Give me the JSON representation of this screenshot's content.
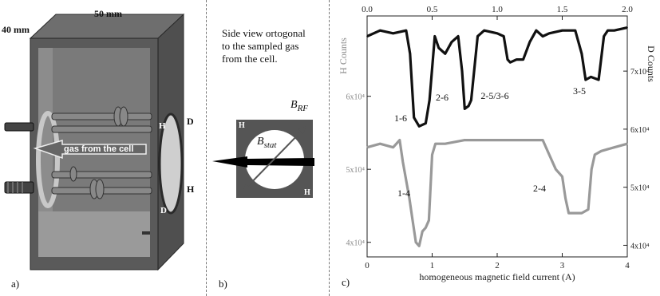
{
  "panel_a": {
    "label": "a)",
    "dim_height": "40 mm",
    "dim_width": "50 mm",
    "gas_label": "gas from the cell",
    "marks": [
      "H",
      "D",
      "H",
      "D"
    ]
  },
  "panel_b": {
    "label": "b)",
    "caption_line1": "Side view ortogonal",
    "caption_line2": "to the sampled gas",
    "caption_line3": "from the cell.",
    "b_rf": "B",
    "b_rf_sub": "RF",
    "b_stat": "B",
    "b_stat_sub": "stat",
    "corner_top": "H",
    "corner_bottom": "H"
  },
  "panel_c": {
    "label": "c)",
    "chart_data": {
      "type": "line",
      "xlabel": "homogeneous magnetic field current (A)",
      "top_axis_ticks": [
        "0.0",
        "0.5",
        "1.0",
        "1.5",
        "2.0"
      ],
      "bottom_axis_ticks": [
        "0",
        "1",
        "2",
        "3",
        "4"
      ],
      "left_axis_label": "H Counts",
      "left_ticks": [
        "6x10⁴",
        "5x10⁴",
        "4x10⁴"
      ],
      "right_axis_label": "D Counts",
      "right_ticks": [
        "7x10⁴",
        "6x10⁴",
        "5x10⁴",
        "4x10⁴"
      ],
      "xlim_bottom": [
        0,
        4
      ],
      "xlim_top": [
        0,
        2
      ],
      "series": [
        {
          "color": "#111111",
          "axis": "right-top",
          "x": [
            0,
            0.1,
            0.2,
            0.3,
            0.33,
            0.36,
            0.4,
            0.45,
            0.48,
            0.52,
            0.55,
            0.6,
            0.65,
            0.7,
            0.73,
            0.75,
            0.78,
            0.8,
            0.85,
            0.9,
            1.0,
            1.05,
            1.08,
            1.1,
            1.15,
            1.2,
            1.25,
            1.3,
            1.35,
            1.4,
            1.5,
            1.6,
            1.65,
            1.68,
            1.72,
            1.78,
            1.82,
            1.85,
            1.9,
            2.0
          ],
          "values": [
            7.6,
            7.7,
            7.65,
            7.7,
            7.3,
            6.2,
            6.05,
            6.1,
            6.5,
            7.6,
            7.4,
            7.3,
            7.5,
            7.6,
            7.0,
            6.35,
            6.4,
            6.5,
            7.6,
            7.7,
            7.65,
            7.6,
            7.2,
            7.15,
            7.2,
            7.2,
            7.5,
            7.7,
            7.6,
            7.65,
            7.7,
            7.7,
            7.3,
            6.85,
            6.9,
            6.85,
            7.6,
            7.7,
            7.7,
            7.75
          ]
        },
        {
          "color": "#999999",
          "axis": "left-bottom",
          "x": [
            0,
            0.2,
            0.4,
            0.5,
            0.55,
            0.65,
            0.7,
            0.75,
            0.8,
            0.85,
            0.9,
            0.95,
            1.0,
            1.05,
            1.2,
            1.5,
            2.0,
            2.5,
            2.7,
            2.8,
            2.9,
            3.0,
            3.05,
            3.1,
            3.2,
            3.3,
            3.4,
            3.45,
            3.5,
            3.6,
            3.8,
            4.0
          ],
          "values": [
            5.3,
            5.35,
            5.3,
            5.4,
            5.1,
            4.6,
            4.3,
            4.0,
            3.95,
            4.15,
            4.2,
            4.3,
            5.2,
            5.35,
            5.35,
            5.4,
            5.4,
            5.4,
            5.4,
            5.2,
            5.0,
            4.9,
            4.6,
            4.4,
            4.4,
            4.4,
            4.45,
            5.0,
            5.2,
            5.25,
            5.3,
            5.35
          ]
        }
      ],
      "annotations": [
        "1-6",
        "2-6",
        "2-5/3-6",
        "3-5",
        "1-4",
        "2-4"
      ]
    }
  }
}
